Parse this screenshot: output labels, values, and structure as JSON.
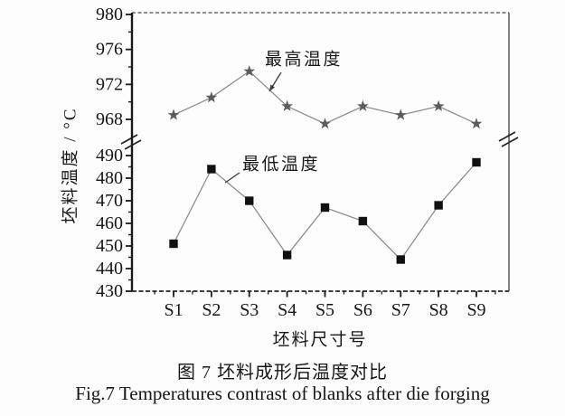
{
  "figure": {
    "captions": {
      "zh": "图 7  坯料成形后温度对比",
      "en": "Fig.7  Temperatures contrast of blanks after die forging"
    }
  },
  "chart_data": {
    "type": "line",
    "title": "坯料成形后温度对比",
    "xlabel": "坯料尺寸号",
    "ylabel": "坯料温度 / °C",
    "categories": [
      "S1",
      "S2",
      "S3",
      "S4",
      "S5",
      "S6",
      "S7",
      "S8",
      "S9"
    ],
    "series": [
      {
        "name": "最高温度",
        "marker": "star",
        "marker_color": "#5c5c5c",
        "line_color": "#8c8c8c",
        "axis_segment": "upper",
        "values": [
          968.5,
          970.5,
          973.5,
          969.5,
          967.5,
          969.5,
          968.5,
          969.5,
          967.5
        ]
      },
      {
        "name": "最低温度",
        "marker": "square",
        "marker_color": "#111111",
        "line_color": "#8c8c8c",
        "axis_segment": "lower",
        "values": [
          451,
          484,
          470,
          446,
          467,
          461,
          444,
          468,
          487
        ]
      }
    ],
    "y_axis": {
      "broken": true,
      "upper_segment": {
        "range": [
          968,
          980
        ],
        "major_ticks": [
          980,
          976,
          972,
          968
        ],
        "minor_ticks": [
          978,
          974,
          970
        ]
      },
      "lower_segment": {
        "range": [
          430,
          490
        ],
        "major_ticks": [
          490,
          480,
          470,
          460,
          450,
          440,
          430
        ],
        "minor_ticks": [
          485,
          475,
          465,
          455,
          445,
          435
        ]
      }
    },
    "annotations": [
      {
        "text": "最高温度",
        "target_series": "最高温度"
      },
      {
        "text": "最低温度",
        "target_series": "最低温度"
      }
    ],
    "legend_position": "inline-annotations",
    "grid": false,
    "axis_color": "#1a1a1a"
  }
}
